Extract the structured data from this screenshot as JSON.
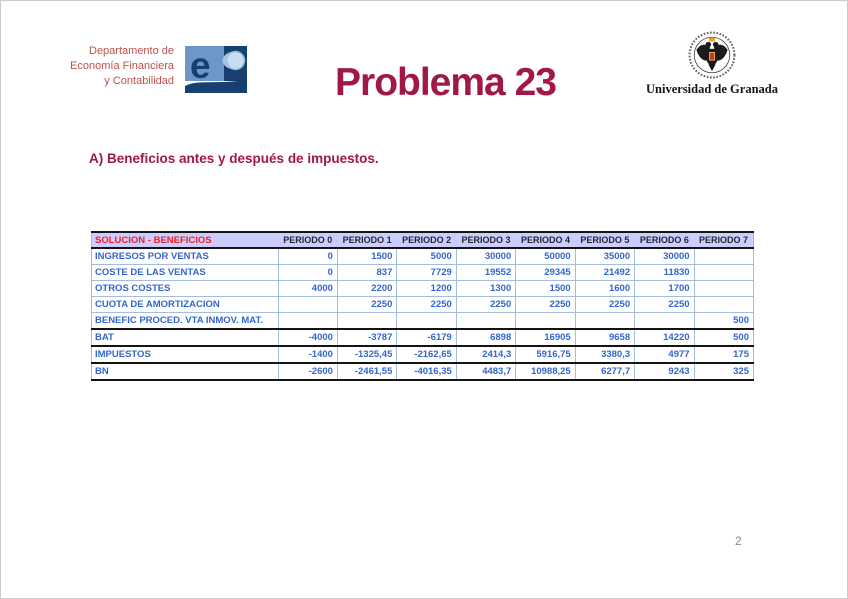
{
  "slide": {
    "department": {
      "line1": "Departamento de",
      "line2": "Economía Financiera",
      "line3": "y Contabilidad"
    },
    "title": "Problema 23",
    "university_name": "Universidad de Granada",
    "section_heading": "A) Beneficios antes y después de impuestos.",
    "page_number": "2"
  },
  "table": {
    "label_header": "SOLUCION - BENEFICIOS",
    "period_headers": [
      "PERIODO 0",
      "PERIODO 1",
      "PERIODO 2",
      "PERIODO 3",
      "PERIODO 4",
      "PERIODO 5",
      "PERIODO 6",
      "PERIODO 7"
    ],
    "rows": [
      {
        "label": "INGRESOS POR VENTAS",
        "totals": false,
        "values": [
          "0",
          "1500",
          "5000",
          "30000",
          "50000",
          "35000",
          "30000",
          ""
        ]
      },
      {
        "label": "COSTE DE LAS VENTAS",
        "totals": false,
        "values": [
          "0",
          "837",
          "7729",
          "19552",
          "29345",
          "21492",
          "11830",
          ""
        ]
      },
      {
        "label": "OTROS COSTES",
        "totals": false,
        "values": [
          "4000",
          "2200",
          "1200",
          "1300",
          "1500",
          "1600",
          "1700",
          ""
        ]
      },
      {
        "label": "CUOTA DE AMORTIZACION",
        "totals": false,
        "values": [
          "",
          "2250",
          "2250",
          "2250",
          "2250",
          "2250",
          "2250",
          ""
        ]
      },
      {
        "label": "BENEFIC PROCED. VTA INMOV. MAT.",
        "totals": false,
        "values": [
          "",
          "",
          "",
          "",
          "",
          "",
          "",
          "500"
        ]
      },
      {
        "label": "BAT",
        "totals": true,
        "values": [
          "-4000",
          "-3787",
          "-6179",
          "6898",
          "16905",
          "9658",
          "14220",
          "500"
        ]
      },
      {
        "label": "IMPUESTOS",
        "totals": true,
        "values": [
          "-1400",
          "-1325,45",
          "-2162,65",
          "2414,3",
          "5916,75",
          "3380,3",
          "4977",
          "175"
        ]
      },
      {
        "label": "BN",
        "totals": true,
        "values": [
          "-2600",
          "-2461,55",
          "-4016,35",
          "4483,7",
          "10988,25",
          "6277,7",
          "9243",
          "325"
        ]
      }
    ]
  },
  "colors": {
    "accent_red": "#A21845",
    "department_red": "#C0504D",
    "table_header_red": "#EE2222",
    "table_blue": "#3366CC",
    "table_header_bg": "#CCCCFF",
    "grid_light_blue": "#A3BEDC",
    "strong_border": "#141414",
    "logo_navy": "#17406E",
    "logo_blue": "#6D96C9"
  }
}
